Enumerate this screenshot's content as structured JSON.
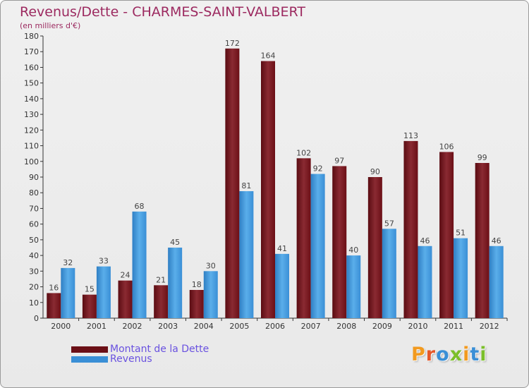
{
  "chart_data": {
    "type": "bar",
    "title": "Revenus/Dette - CHARMES-SAINT-VALBERT",
    "subtitle": "(en milliers d'€)",
    "xlabel": "",
    "ylabel": "",
    "ylim": [
      0,
      180
    ],
    "ytick_step": 10,
    "grid": false,
    "legend": "bottom-left",
    "categories": [
      "2000",
      "2001",
      "2002",
      "2003",
      "2004",
      "2005",
      "2006",
      "2007",
      "2008",
      "2009",
      "2010",
      "2011",
      "2012"
    ],
    "series": [
      {
        "name": "Montant de la Dette",
        "color": "#6b0f16",
        "values": [
          16,
          15,
          24,
          21,
          18,
          172,
          164,
          102,
          97,
          90,
          113,
          106,
          99
        ]
      },
      {
        "name": "Revenus",
        "color": "#3a8fd6",
        "values": [
          32,
          33,
          68,
          45,
          30,
          81,
          41,
          92,
          40,
          57,
          46,
          51,
          46
        ]
      }
    ]
  },
  "colors": {
    "title": "#9c2a60",
    "legend_text": "#6a52e0",
    "value_labels": "#444444",
    "axis": "#333333"
  },
  "logo": {
    "text": "Proxiti",
    "letters": [
      {
        "ch": "P",
        "color": "#f29a1f"
      },
      {
        "ch": "r",
        "color": "#e5582a"
      },
      {
        "ch": "o",
        "color": "#3a8fd6"
      },
      {
        "ch": "x",
        "color": "#7bbf2a"
      },
      {
        "ch": "i",
        "color": "#f29a1f"
      },
      {
        "ch": "t",
        "color": "#3a8fd6"
      },
      {
        "ch": "i",
        "color": "#7bbf2a"
      }
    ]
  }
}
